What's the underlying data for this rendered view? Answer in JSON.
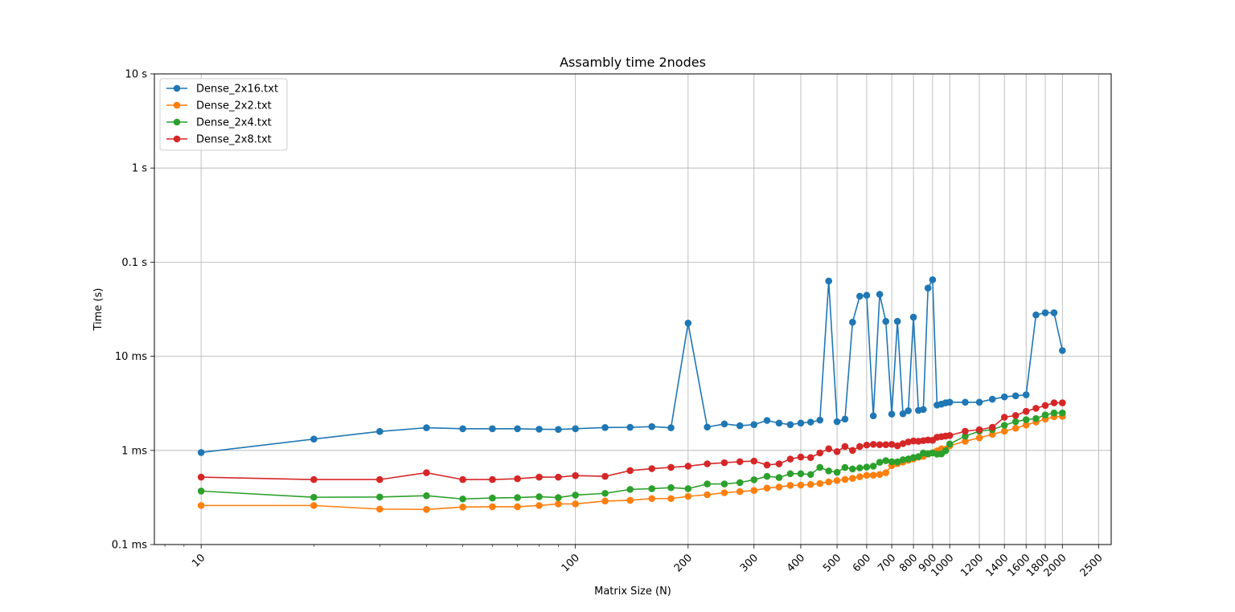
{
  "chart_data": {
    "type": "line",
    "title": "Assambly time 2nodes",
    "xlabel": "Matrix Size (N)",
    "ylabel": "Time (s)",
    "x_scale": "log",
    "y_scale": "log",
    "xlim": [
      7.5,
      2700
    ],
    "ylim": [
      0.0001,
      10
    ],
    "grid": true,
    "legend_position": "top-left",
    "x_ticks": [
      {
        "value": 10,
        "label": "10"
      },
      {
        "value": 100,
        "label": "100"
      },
      {
        "value": 200,
        "label": "200"
      },
      {
        "value": 300,
        "label": "300"
      },
      {
        "value": 400,
        "label": "400"
      },
      {
        "value": 500,
        "label": "500"
      },
      {
        "value": 600,
        "label": "600"
      },
      {
        "value": 700,
        "label": "700"
      },
      {
        "value": 800,
        "label": "800"
      },
      {
        "value": 900,
        "label": "900"
      },
      {
        "value": 1000,
        "label": "1000"
      },
      {
        "value": 1200,
        "label": "1200"
      },
      {
        "value": 1400,
        "label": "1400"
      },
      {
        "value": 1600,
        "label": "1600"
      },
      {
        "value": 1800,
        "label": "1800"
      },
      {
        "value": 2000,
        "label": "2000"
      },
      {
        "value": 2500,
        "label": "2500"
      }
    ],
    "y_ticks": [
      {
        "value": 0.0001,
        "label": "0.1 ms"
      },
      {
        "value": 0.001,
        "label": "1 ms"
      },
      {
        "value": 0.01,
        "label": "10 ms"
      },
      {
        "value": 0.1,
        "label": "0.1 s"
      },
      {
        "value": 1,
        "label": "1 s"
      },
      {
        "value": 10,
        "label": "10 s"
      }
    ],
    "x": [
      10,
      20,
      30,
      40,
      50,
      60,
      70,
      80,
      90,
      100,
      120,
      140,
      160,
      180,
      200,
      225,
      250,
      275,
      300,
      325,
      350,
      375,
      400,
      425,
      450,
      475,
      500,
      525,
      550,
      575,
      600,
      625,
      650,
      675,
      700,
      725,
      750,
      775,
      800,
      825,
      850,
      875,
      900,
      925,
      950,
      975,
      1000,
      1100,
      1200,
      1300,
      1400,
      1500,
      1600,
      1700,
      1800,
      1900,
      2000
    ],
    "series": [
      {
        "name": "Dense_2x16.txt",
        "color": "#1f77b4",
        "values": [
          0.00095,
          0.00132,
          0.00159,
          0.00174,
          0.0017,
          0.0017,
          0.0017,
          0.00168,
          0.00167,
          0.0017,
          0.00175,
          0.00176,
          0.00179,
          0.00174,
          0.0225,
          0.00177,
          0.00191,
          0.00183,
          0.00188,
          0.00208,
          0.00195,
          0.00188,
          0.00195,
          0.002,
          0.0021,
          0.063,
          0.00202,
          0.00215,
          0.023,
          0.0435,
          0.0445,
          0.00233,
          0.0455,
          0.0235,
          0.00243,
          0.0235,
          0.00245,
          0.00264,
          0.026,
          0.00266,
          0.00272,
          0.053,
          0.065,
          0.00303,
          0.0031,
          0.0032,
          0.00325,
          0.00325,
          0.00325,
          0.0035,
          0.0037,
          0.0038,
          0.0039,
          0.0275,
          0.029,
          0.029,
          0.0115
        ]
      },
      {
        "name": "Dense_2x2.txt",
        "color": "#ff7f0e",
        "values": [
          0.00026,
          0.00026,
          0.000238,
          0.000236,
          0.00025,
          0.000252,
          0.000252,
          0.00026,
          0.00027,
          0.00027,
          0.00029,
          0.000295,
          0.000308,
          0.000308,
          0.000325,
          0.000338,
          0.000355,
          0.000365,
          0.000375,
          0.000398,
          0.000408,
          0.000425,
          0.000428,
          0.000435,
          0.000445,
          0.000462,
          0.000478,
          0.000492,
          0.000505,
          0.000525,
          0.000543,
          0.000545,
          0.000555,
          0.00058,
          0.000688,
          0.000725,
          0.000752,
          0.000785,
          0.000812,
          0.000848,
          0.000865,
          0.000912,
          0.000945,
          0.00099,
          0.00104,
          0.00103,
          0.00112,
          0.00125,
          0.00136,
          0.00148,
          0.0016,
          0.00172,
          0.00186,
          0.002,
          0.00215,
          0.00228,
          0.0023
        ]
      },
      {
        "name": "Dense_2x4.txt",
        "color": "#2ca02c",
        "values": [
          0.00037,
          0.000318,
          0.00032,
          0.00033,
          0.000305,
          0.000312,
          0.000315,
          0.000322,
          0.000315,
          0.000335,
          0.00035,
          0.000385,
          0.000392,
          0.000402,
          0.000392,
          0.00044,
          0.00044,
          0.000455,
          0.000488,
          0.00053,
          0.000515,
          0.000565,
          0.000565,
          0.000555,
          0.00066,
          0.000605,
          0.000585,
          0.000658,
          0.000635,
          0.000652,
          0.000665,
          0.00068,
          0.000748,
          0.000778,
          0.000758,
          0.000755,
          0.000795,
          0.000812,
          0.00084,
          0.000858,
          0.000938,
          0.00092,
          0.00094,
          0.000912,
          0.000918,
          0.00099,
          0.00117,
          0.00142,
          0.0016,
          0.00166,
          0.00185,
          0.00202,
          0.00212,
          0.00218,
          0.00238,
          0.0025,
          0.0025
        ]
      },
      {
        "name": "Dense_2x8.txt",
        "color": "#d62728",
        "values": [
          0.00052,
          0.00049,
          0.00049,
          0.00058,
          0.00049,
          0.00049,
          0.0005,
          0.00052,
          0.00052,
          0.00054,
          0.00053,
          0.00061,
          0.00064,
          0.00066,
          0.00068,
          0.00072,
          0.00074,
          0.00076,
          0.00077,
          0.0007,
          0.00072,
          0.00081,
          0.00085,
          0.00084,
          0.00094,
          0.00104,
          0.00097,
          0.0011,
          0.001,
          0.0011,
          0.00114,
          0.00116,
          0.00115,
          0.00115,
          0.00116,
          0.00112,
          0.00118,
          0.00123,
          0.00126,
          0.00125,
          0.00127,
          0.00129,
          0.00128,
          0.00138,
          0.0014,
          0.00142,
          0.00144,
          0.0016,
          0.00166,
          0.00176,
          0.00225,
          0.00235,
          0.0026,
          0.0028,
          0.003,
          0.0032,
          0.0032
        ]
      }
    ]
  }
}
